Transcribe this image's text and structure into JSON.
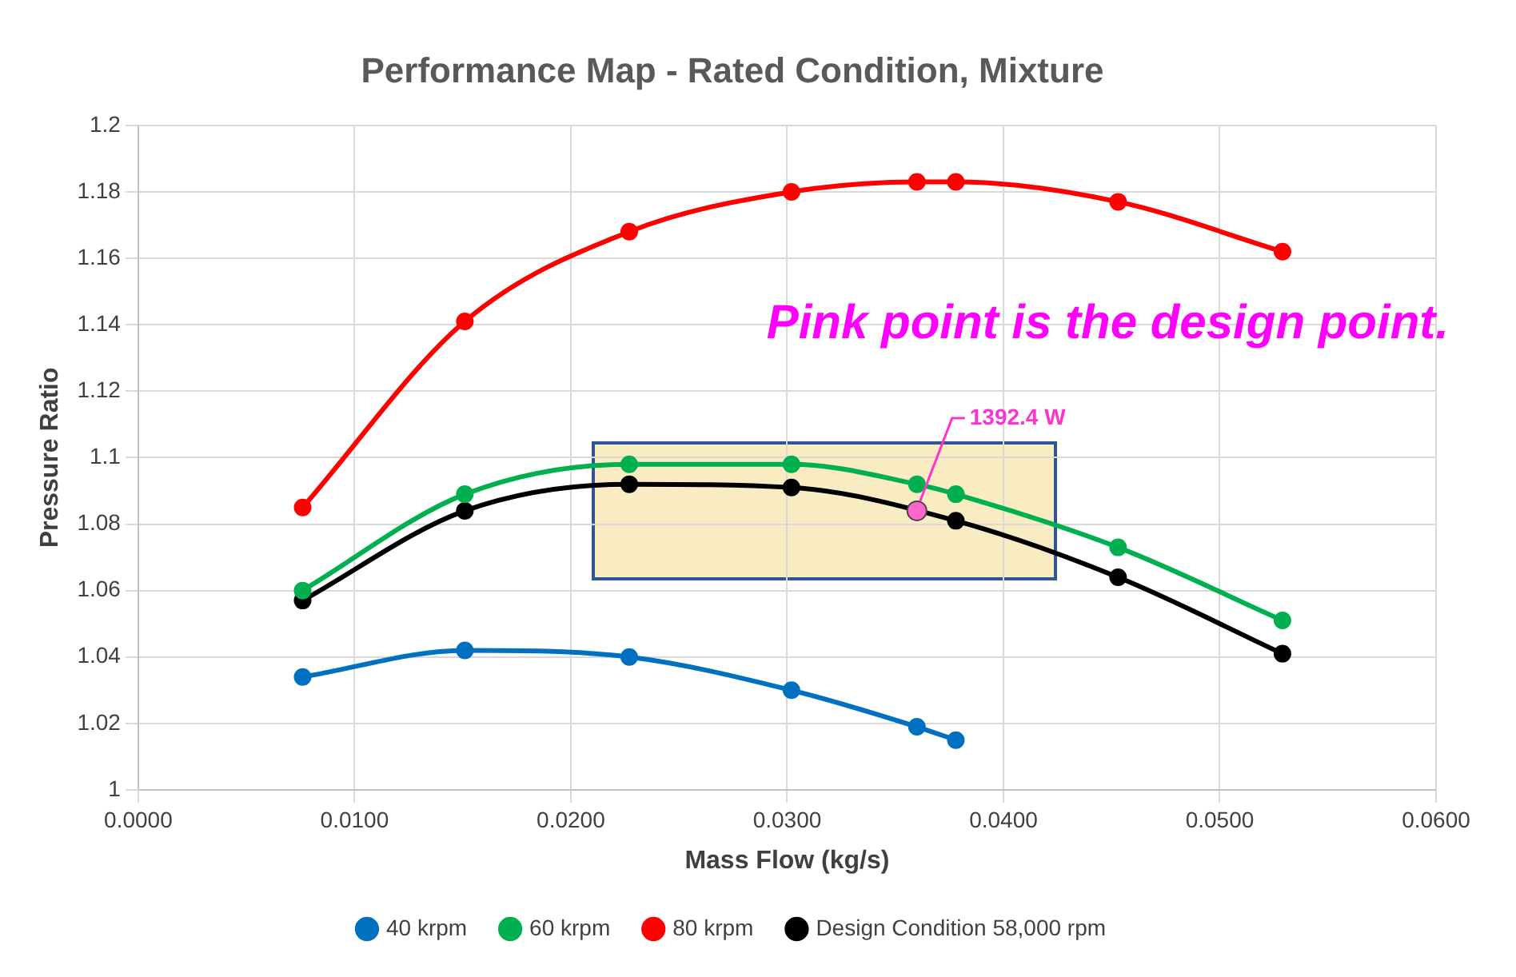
{
  "chart_data": {
    "type": "line",
    "title": "Performance Map - Rated Condition, Mixture",
    "xlabel": "Mass Flow (kg/s)",
    "ylabel": "Pressure Ratio",
    "x": [
      0.0076,
      0.0151,
      0.0227,
      0.0302,
      0.036,
      0.0378,
      0.0453,
      0.0529
    ],
    "series": [
      {
        "name": "40 krpm",
        "color": "#0070c0",
        "values": [
          1.034,
          1.042,
          1.04,
          1.03,
          1.019,
          1.015,
          null,
          null
        ]
      },
      {
        "name": "60 krpm",
        "color": "#00b050",
        "values": [
          1.06,
          1.089,
          1.098,
          1.098,
          1.092,
          1.089,
          1.073,
          1.051
        ]
      },
      {
        "name": "80 krpm",
        "color": "#ff0000",
        "values": [
          1.085,
          1.141,
          1.168,
          1.18,
          1.183,
          1.183,
          1.177,
          1.162
        ]
      },
      {
        "name": "Design Condition 58,000 rpm",
        "color": "#000000",
        "x": [
          0.0076,
          0.0151,
          0.0227,
          0.0302,
          0.0378,
          0.0453,
          0.0529
        ],
        "values": [
          1.057,
          1.084,
          1.092,
          1.091,
          1.081,
          1.064,
          1.041
        ]
      },
      {
        "type": "scatter",
        "color": "#ff66cc",
        "x": [
          0.036
        ],
        "values": [
          1.084
        ]
      }
    ],
    "xlim": [
      0,
      0.06
    ],
    "xticks": [
      {
        "value": 0,
        "label": "0.0000"
      },
      {
        "value": 0.01,
        "label": "0.0100"
      },
      {
        "value": 0.02,
        "label": "0.0200"
      },
      {
        "value": 0.03,
        "label": "0.0300"
      },
      {
        "value": 0.04,
        "label": "0.0400"
      },
      {
        "value": 0.05,
        "label": "0.0500"
      },
      {
        "value": 0.06,
        "label": "0.0600"
      }
    ],
    "ylim": [
      1,
      1.2
    ],
    "yticks": [
      1,
      1.02,
      1.04,
      1.06,
      1.08,
      1.1,
      1.12,
      1.14,
      1.16,
      1.18,
      1.2
    ],
    "annotations": [
      "Pink point is the design point.",
      {
        "text": "1392.4 W",
        "x": 0.036,
        "y": 1.084
      }
    ],
    "grid": true,
    "legend": "bottom",
    "marker": "circle",
    "line_style": "solid"
  }
}
